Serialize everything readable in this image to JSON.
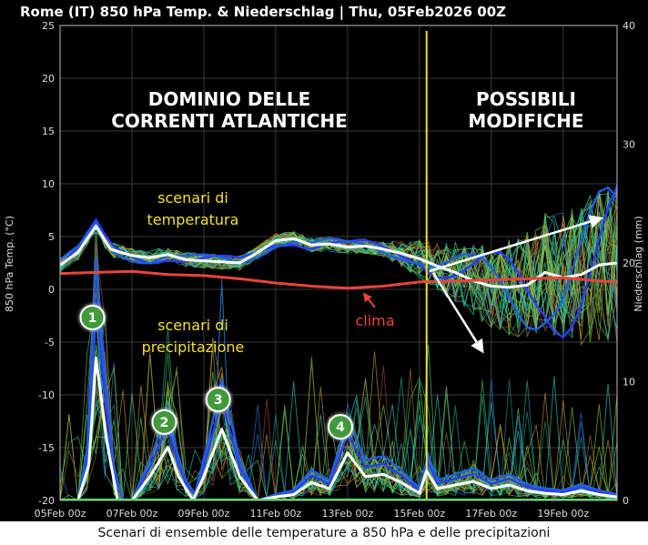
{
  "chart_data": {
    "type": "line",
    "title": "Rome  (IT)  850 hPa Temp. & Niederschlag | Thu, 05Feb2026 00Z",
    "ylabel_left": "850 hPa Temp. (°C)",
    "ylabel_right": "Niederschlag (mm)",
    "ylim_left": [
      -20,
      25
    ],
    "ylim_right": [
      0,
      40
    ],
    "yticks_left": [
      "25",
      "20",
      "15",
      "10",
      "5",
      "0",
      "-5",
      "-10",
      "-15",
      "-20"
    ],
    "yticks_right": [
      "40",
      "30",
      "20",
      "10",
      "0"
    ],
    "x_ticks": [
      "05Feb 00z",
      "07Feb 00z",
      "09Feb 00z",
      "11Feb 00z",
      "13Feb 00z",
      "15Feb 00z",
      "17Feb 00z",
      "19Feb 00z"
    ],
    "x_range_days": [
      0,
      15.5
    ],
    "analysis_line_day": 10.2,
    "series": [
      {
        "name": "scenari di temperatura",
        "color": "#ffffff",
        "axis": "left",
        "x": [
          0,
          0.5,
          1.0,
          1.4,
          2,
          2.5,
          3,
          3.5,
          4,
          4.5,
          5,
          5.5,
          6,
          6.5,
          7,
          7.5,
          8,
          8.5,
          9,
          9.5,
          10,
          10.5,
          11,
          11.5,
          12,
          12.5,
          13,
          13.5,
          14,
          14.5,
          15,
          15.5
        ],
        "values": [
          2.3,
          3.5,
          6.0,
          3.8,
          3.2,
          3.0,
          3.3,
          2.8,
          2.7,
          2.6,
          2.5,
          3.5,
          4.6,
          4.8,
          4.2,
          4.3,
          4.0,
          4.1,
          3.8,
          3.4,
          2.9,
          2.2,
          1.6,
          0.8,
          0.3,
          0.2,
          0.4,
          1.6,
          1.1,
          1.4,
          2.3,
          2.5
        ]
      },
      {
        "name": "clima",
        "color": "#e8453c",
        "axis": "left",
        "x": [
          0,
          1,
          2,
          3,
          4,
          5,
          6,
          7,
          8,
          9,
          10,
          11,
          12,
          13,
          14,
          15,
          15.5
        ],
        "values": [
          1.5,
          1.6,
          1.7,
          1.4,
          1.3,
          1.0,
          0.6,
          0.3,
          0.1,
          0.3,
          0.7,
          0.8,
          0.9,
          1.0,
          1.1,
          0.8,
          0.7
        ]
      },
      {
        "name": "scenari di precipitazione",
        "color": "#ffffff",
        "axis": "right",
        "x": [
          0,
          0.5,
          0.8,
          1.0,
          1.3,
          1.6,
          2.0,
          2.5,
          3.0,
          3.3,
          3.7,
          4.0,
          4.5,
          5.0,
          5.5,
          6.0,
          6.5,
          7.0,
          7.5,
          8.0,
          8.5,
          9.0,
          9.5,
          10.0,
          10.2,
          10.5,
          11.0,
          11.5,
          12.0,
          12.5,
          13.0,
          13.5,
          14.0,
          14.5,
          15.0,
          15.5
        ],
        "values": [
          0,
          0,
          3,
          12,
          5,
          0,
          0,
          2,
          4.5,
          2,
          0,
          2,
          6,
          2,
          0,
          0.3,
          0.5,
          1.5,
          1,
          4,
          2,
          2.2,
          1.5,
          0.6,
          2.5,
          1.0,
          1.3,
          1.6,
          1.0,
          1.3,
          0.8,
          0.6,
          0.5,
          0.8,
          0.5,
          0.3
        ]
      }
    ]
  },
  "annotations": {
    "left_heading_line1": "DOMINIO DELLE",
    "left_heading_line2": "CORRENTI ATLANTICHE",
    "right_heading_line1": "POSSIBILI",
    "right_heading_line2": "MODIFICHE",
    "temp_label_line1": "scenari di",
    "temp_label_line2": "temperatura",
    "precip_label_line1": "scenari di",
    "precip_label_line2": "precipitazione",
    "clima_label": "clima",
    "markers": [
      "1",
      "2",
      "3",
      "4"
    ]
  },
  "caption": "Scenari di ensemble delle temperature a 850 hPa e delle precipitazioni",
  "colors": {
    "background": "#000000",
    "temperature_mean": "#ffffff",
    "clima": "#e8453c",
    "analysis_line": "#f2e02c",
    "label_yellow": "#f2e02c",
    "marker_fill": "#3f9a3a",
    "heading": "#ffffff"
  }
}
